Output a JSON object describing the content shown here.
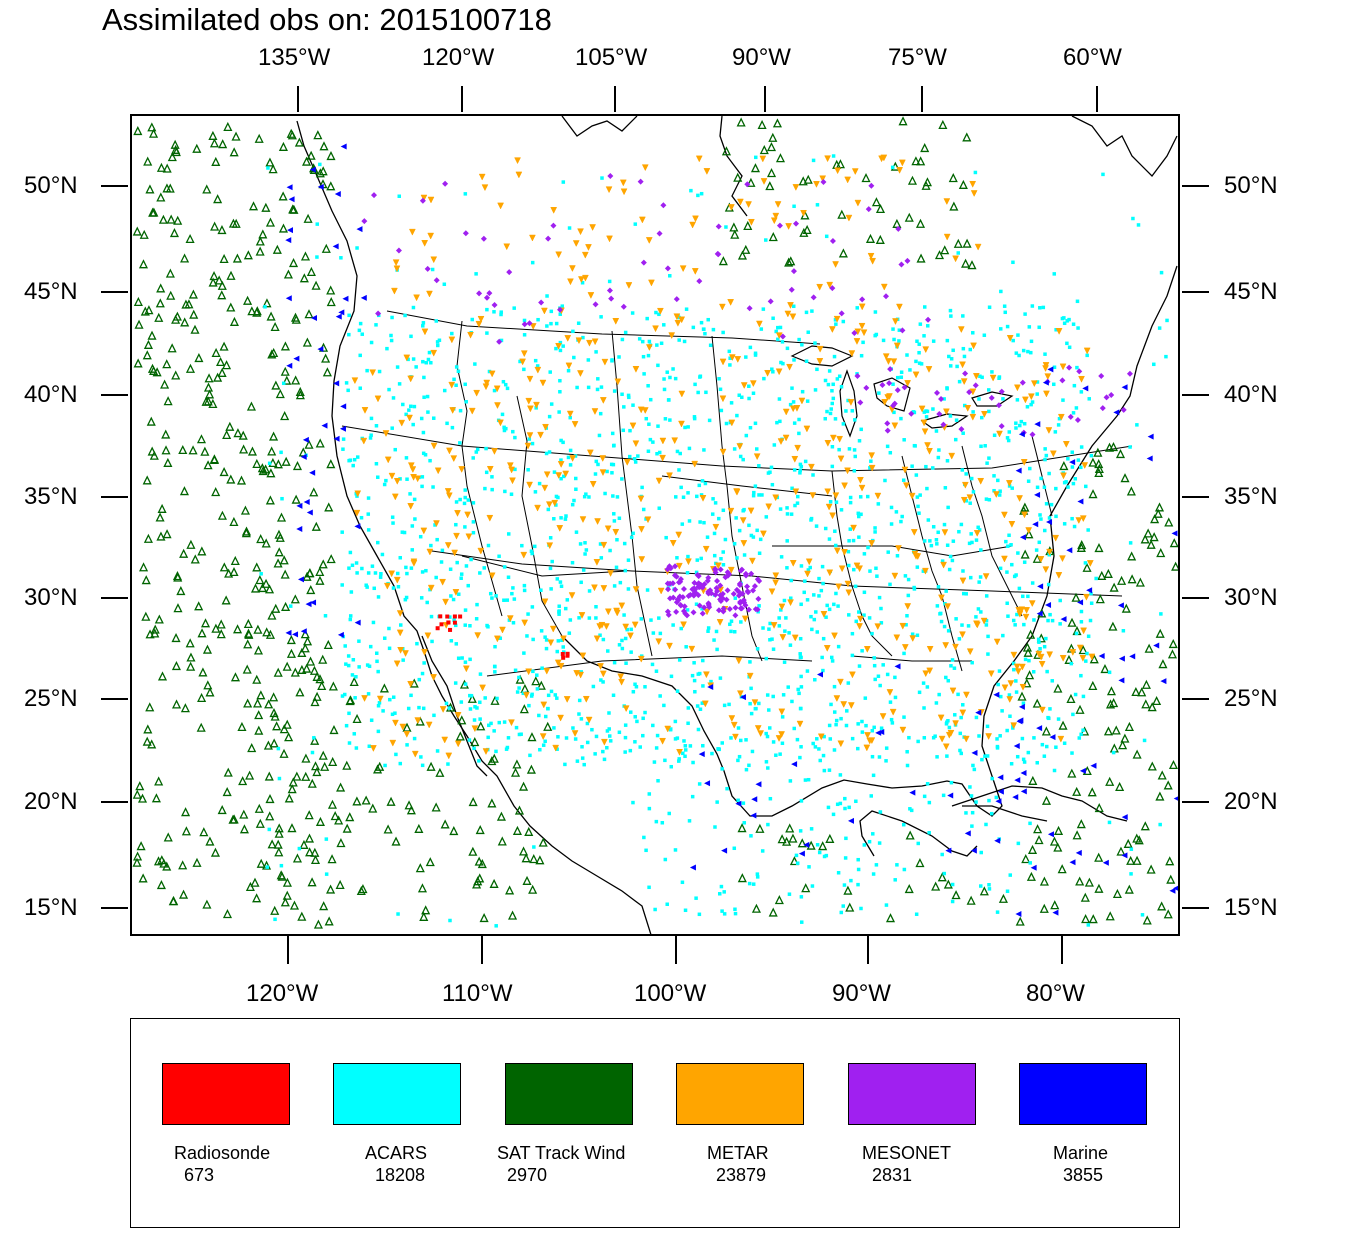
{
  "title": "Assimilated obs on: 2015100718",
  "top_lon_ticks": [
    "135°W",
    "120°W",
    "105°W",
    "90°W",
    "75°W",
    "60°W"
  ],
  "bottom_lon_ticks": [
    "120°W",
    "110°W",
    "100°W",
    "90°W",
    "80°W"
  ],
  "lat_ticks": [
    "50°N",
    "45°N",
    "40°N",
    "35°N",
    "30°N",
    "25°N",
    "20°N",
    "15°N"
  ],
  "legend": [
    {
      "label": "Radiosonde",
      "count": "673",
      "color": "#ff0000"
    },
    {
      "label": "ACARS",
      "count": "18208",
      "color": "#00ffff"
    },
    {
      "label": "SAT Track Wind",
      "count": "2970",
      "color": "#006400"
    },
    {
      "label": "METAR",
      "count": "23879",
      "color": "#ffa500"
    },
    {
      "label": "MESONET",
      "count": "2831",
      "color": "#a020f0"
    },
    {
      "label": "Marine",
      "count": "3855",
      "color": "#0000ff"
    }
  ],
  "colors": {
    "coastline": "#000000",
    "acars": "#00ffff",
    "sat_track_wind": "#006400",
    "metar": "#ffa500",
    "mesonet": "#a020f0",
    "marine": "#0000ff",
    "radiosonde": "#ff0000"
  }
}
